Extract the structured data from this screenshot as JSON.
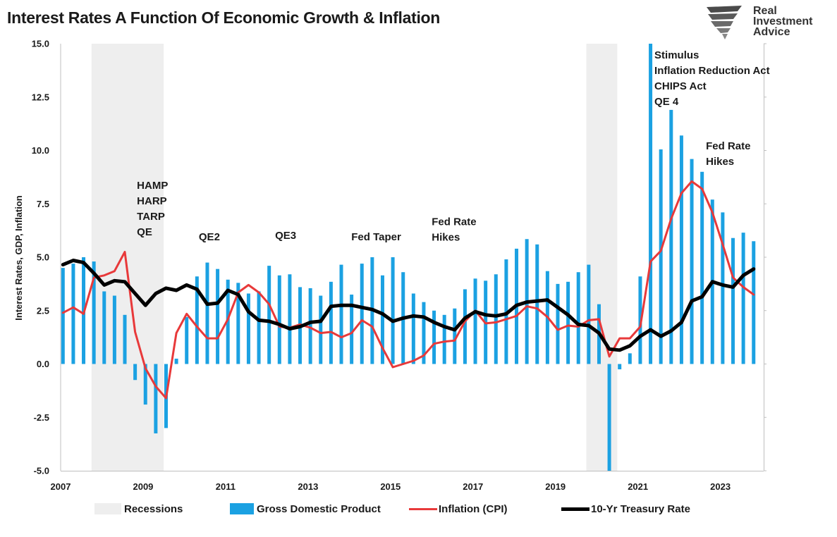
{
  "title": "Interest Rates A Function Of Economic Growth & Inflation",
  "brand": {
    "line1": "Real",
    "line2": "Investment",
    "line3": "Advice"
  },
  "chart_data": {
    "type": "bar+line",
    "title": "Interest Rates A Function Of Economic Growth & Inflation",
    "ylabel": "Interest Rates, GDP, Inflation",
    "ylim": [
      -5,
      15
    ],
    "yticks": [
      "15.0",
      "12.5",
      "10.0",
      "7.5",
      "5.0",
      "2.5",
      "0.0",
      "-2.5",
      "-5.0"
    ],
    "ytick_values": [
      15,
      12.5,
      10,
      7.5,
      5,
      2.5,
      0,
      -2.5,
      -5
    ],
    "xlim": [
      2007,
      2024.05
    ],
    "xticks": [
      "2007",
      "2009",
      "2011",
      "2013",
      "2015",
      "2017",
      "2019",
      "2021",
      "2023"
    ],
    "xtick_values": [
      2007,
      2009,
      2011,
      2013,
      2015,
      2017,
      2019,
      2021,
      2023
    ],
    "grid": false,
    "legend_position": "bottom",
    "colors": {
      "recession": "#eeeeee",
      "gdp": "#1ba1e2",
      "cpi": "#e8393a",
      "treasury": "#000000"
    },
    "recessions": [
      [
        2007.75,
        2009.5
      ],
      [
        2019.75,
        2020.5
      ]
    ],
    "series": [
      {
        "name": "Gross Domestic Product",
        "type": "bar",
        "x": [
          2007.0,
          2007.25,
          2007.5,
          2007.75,
          2008.0,
          2008.25,
          2008.5,
          2008.75,
          2009.0,
          2009.25,
          2009.5,
          2009.75,
          2010.0,
          2010.25,
          2010.5,
          2010.75,
          2011.0,
          2011.25,
          2011.5,
          2011.75,
          2012.0,
          2012.25,
          2012.5,
          2012.75,
          2013.0,
          2013.25,
          2013.5,
          2013.75,
          2014.0,
          2014.25,
          2014.5,
          2014.75,
          2015.0,
          2015.25,
          2015.5,
          2015.75,
          2016.0,
          2016.25,
          2016.5,
          2016.75,
          2017.0,
          2017.25,
          2017.5,
          2017.75,
          2018.0,
          2018.25,
          2018.5,
          2018.75,
          2019.0,
          2019.25,
          2019.5,
          2019.75,
          2020.0,
          2020.25,
          2020.5,
          2020.75,
          2021.0,
          2021.25,
          2021.5,
          2021.75,
          2022.0,
          2022.25,
          2022.5,
          2022.75,
          2023.0,
          2023.25,
          2023.5,
          2023.75
        ],
        "values": [
          4.5,
          4.7,
          5.0,
          4.8,
          3.4,
          3.2,
          2.3,
          -0.75,
          -1.9,
          -3.25,
          -3.0,
          0.25,
          2.2,
          4.1,
          4.75,
          4.45,
          3.95,
          3.8,
          3.3,
          3.4,
          4.6,
          4.15,
          4.2,
          3.6,
          3.55,
          3.2,
          3.85,
          4.65,
          3.25,
          4.7,
          5.0,
          4.15,
          5.0,
          4.3,
          3.3,
          2.9,
          2.5,
          2.3,
          2.6,
          3.5,
          4.0,
          3.9,
          4.2,
          4.9,
          5.4,
          5.85,
          5.6,
          4.35,
          3.75,
          3.85,
          4.3,
          4.65,
          2.8,
          -5.0,
          -0.25,
          0.5,
          4.1,
          15.0,
          10.05,
          11.9,
          10.7,
          9.6,
          9.0,
          7.7,
          7.1,
          5.9,
          6.15,
          5.75
        ]
      },
      {
        "name": "Inflation (CPI)",
        "type": "line",
        "x": [
          2007.0,
          2007.25,
          2007.5,
          2007.75,
          2008.0,
          2008.25,
          2008.5,
          2008.75,
          2009.0,
          2009.25,
          2009.5,
          2009.75,
          2010.0,
          2010.25,
          2010.5,
          2010.75,
          2011.0,
          2011.25,
          2011.5,
          2011.75,
          2012.0,
          2012.25,
          2012.5,
          2012.75,
          2013.0,
          2013.25,
          2013.5,
          2013.75,
          2014.0,
          2014.25,
          2014.5,
          2014.75,
          2015.0,
          2015.25,
          2015.5,
          2015.75,
          2016.0,
          2016.25,
          2016.5,
          2016.75,
          2017.0,
          2017.25,
          2017.5,
          2017.75,
          2018.0,
          2018.25,
          2018.5,
          2018.75,
          2019.0,
          2019.25,
          2019.5,
          2019.75,
          2020.0,
          2020.25,
          2020.5,
          2020.75,
          2021.0,
          2021.25,
          2021.5,
          2021.75,
          2022.0,
          2022.25,
          2022.5,
          2022.75,
          2023.0,
          2023.25,
          2023.5,
          2023.75
        ],
        "values": [
          2.4,
          2.65,
          2.35,
          4.05,
          4.15,
          4.35,
          5.25,
          1.5,
          -0.2,
          -1.05,
          -1.6,
          1.45,
          2.35,
          1.75,
          1.2,
          1.2,
          2.1,
          3.35,
          3.7,
          3.35,
          2.8,
          1.75,
          1.7,
          1.85,
          1.7,
          1.45,
          1.5,
          1.25,
          1.45,
          2.05,
          1.75,
          0.75,
          -0.15,
          0.0,
          0.15,
          0.4,
          0.95,
          1.05,
          1.1,
          2.0,
          2.5,
          1.9,
          1.95,
          2.1,
          2.25,
          2.7,
          2.6,
          2.2,
          1.6,
          1.8,
          1.75,
          2.05,
          2.1,
          0.35,
          1.2,
          1.2,
          1.75,
          4.8,
          5.3,
          6.8,
          8.0,
          8.55,
          8.2,
          7.1,
          5.6,
          4.05,
          3.6,
          3.25
        ]
      },
      {
        "name": "10-Yr Treasury Rate",
        "type": "line",
        "x": [
          2007.0,
          2007.25,
          2007.5,
          2007.75,
          2008.0,
          2008.25,
          2008.5,
          2008.75,
          2009.0,
          2009.25,
          2009.5,
          2009.75,
          2010.0,
          2010.25,
          2010.5,
          2010.75,
          2011.0,
          2011.25,
          2011.5,
          2011.75,
          2012.0,
          2012.25,
          2012.5,
          2012.75,
          2013.0,
          2013.25,
          2013.5,
          2013.75,
          2014.0,
          2014.25,
          2014.5,
          2014.75,
          2015.0,
          2015.25,
          2015.5,
          2015.75,
          2016.0,
          2016.25,
          2016.5,
          2016.75,
          2017.0,
          2017.25,
          2017.5,
          2017.75,
          2018.0,
          2018.25,
          2018.5,
          2018.75,
          2019.0,
          2019.25,
          2019.5,
          2019.75,
          2020.0,
          2020.25,
          2020.5,
          2020.75,
          2021.0,
          2021.25,
          2021.5,
          2021.75,
          2022.0,
          2022.25,
          2022.5,
          2022.75,
          2023.0,
          2023.25,
          2023.5,
          2023.75
        ],
        "values": [
          4.65,
          4.85,
          4.75,
          4.25,
          3.7,
          3.9,
          3.85,
          3.3,
          2.75,
          3.3,
          3.55,
          3.45,
          3.7,
          3.5,
          2.8,
          2.85,
          3.45,
          3.25,
          2.45,
          2.05,
          2.0,
          1.85,
          1.65,
          1.75,
          1.95,
          2.0,
          2.7,
          2.75,
          2.75,
          2.65,
          2.55,
          2.35,
          2.0,
          2.15,
          2.25,
          2.2,
          1.95,
          1.75,
          1.6,
          2.15,
          2.45,
          2.3,
          2.25,
          2.35,
          2.75,
          2.9,
          2.95,
          3.0,
          2.65,
          2.3,
          1.85,
          1.8,
          1.45,
          0.7,
          0.65,
          0.85,
          1.3,
          1.6,
          1.3,
          1.55,
          1.95,
          2.95,
          3.15,
          3.85,
          3.7,
          3.6,
          4.15,
          4.45
        ]
      }
    ],
    "annotations": [
      {
        "text": [
          "HAMP",
          "HARP",
          "TARP",
          "QE"
        ],
        "x": 2008.85,
        "y": 8.2
      },
      {
        "text": [
          "QE2"
        ],
        "x": 2010.35,
        "y": 5.8
      },
      {
        "text": [
          "QE3"
        ],
        "x": 2012.2,
        "y": 5.85
      },
      {
        "text": [
          "Fed Taper"
        ],
        "x": 2014.05,
        "y": 5.8
      },
      {
        "text": [
          "Fed Rate",
          "Hikes"
        ],
        "x": 2016.0,
        "y": 6.5
      },
      {
        "text": [
          "Stimulus",
          "Inflation Reduction Act",
          "CHIPS Act",
          "QE 4"
        ],
        "x": 2021.4,
        "y": 14.3
      },
      {
        "text": [
          "Fed Rate",
          "Hikes"
        ],
        "x": 2022.65,
        "y": 10.05
      }
    ]
  },
  "legend": [
    {
      "key": "recession",
      "label": "Recessions"
    },
    {
      "key": "gdp",
      "label": "Gross Domestic Product"
    },
    {
      "key": "cpi",
      "label": "Inflation (CPI)"
    },
    {
      "key": "treasury",
      "label": "10-Yr Treasury Rate"
    }
  ]
}
